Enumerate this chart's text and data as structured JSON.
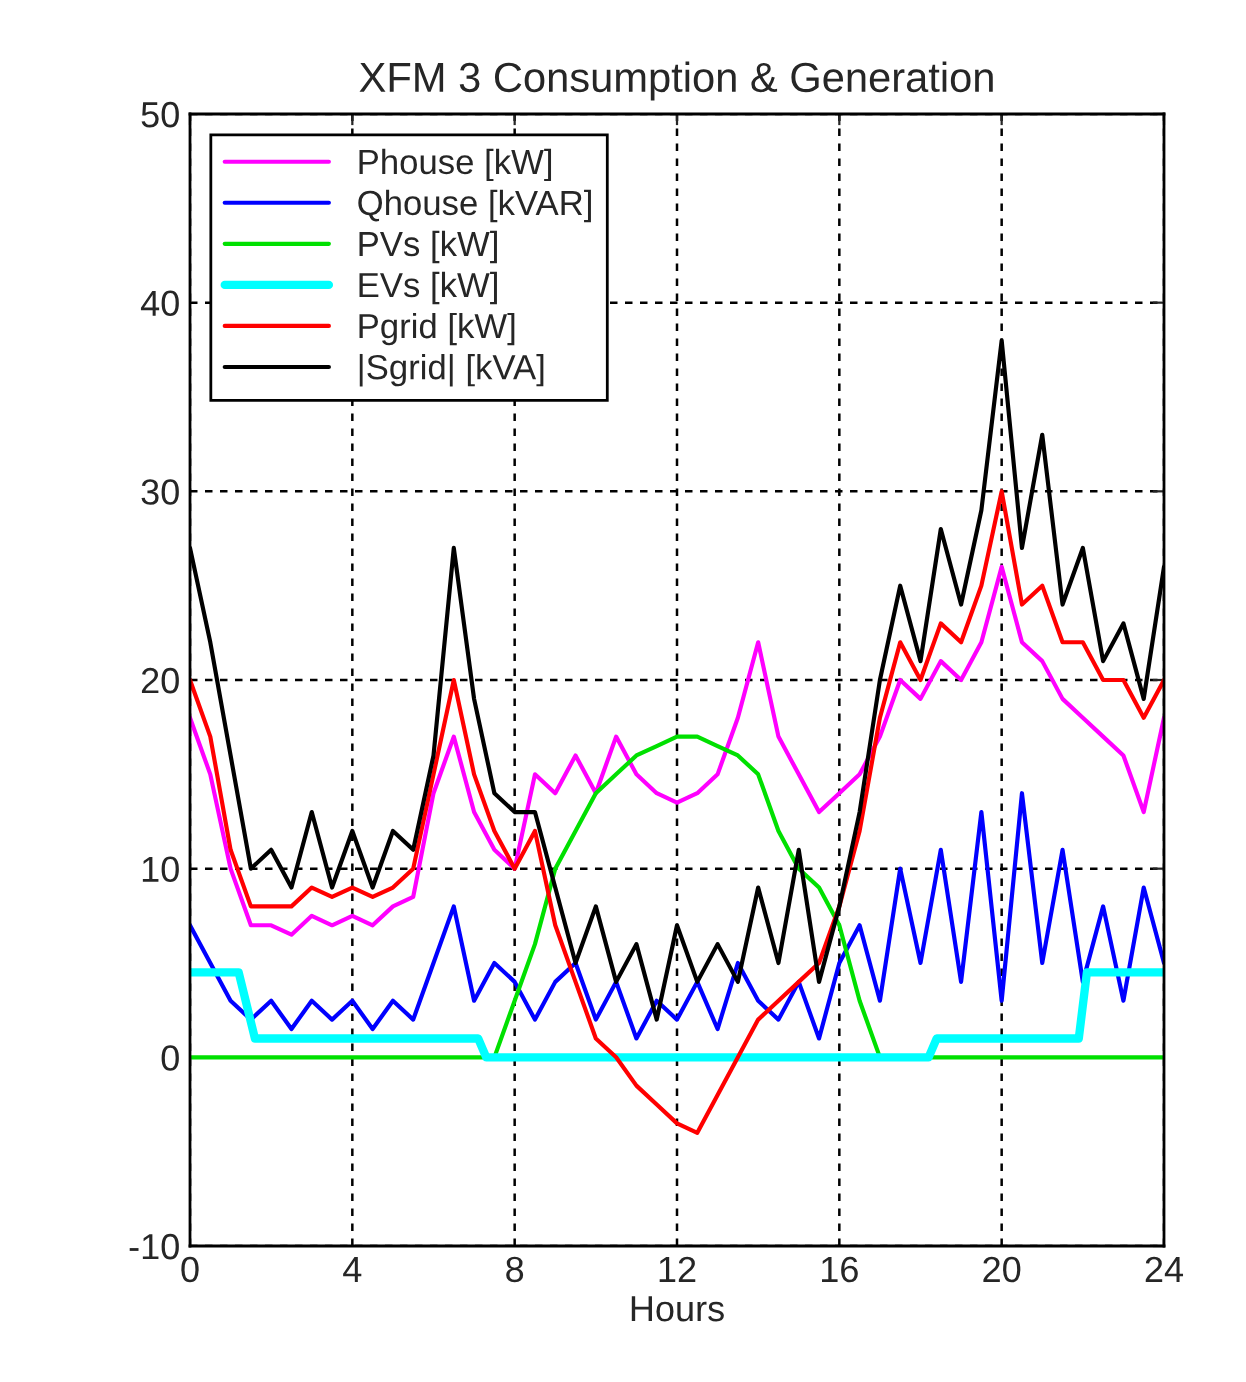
{
  "chart_data": {
    "type": "line",
    "title": "XFM 3 Consumption & Generation",
    "xlabel": "Hours",
    "x": [
      0,
      0.5,
      1,
      1.5,
      2,
      2.5,
      3,
      3.5,
      4,
      4.5,
      5,
      5.5,
      6,
      6.5,
      7,
      7.5,
      8,
      8.5,
      9,
      9.5,
      10,
      10.5,
      11,
      11.5,
      12,
      12.5,
      13,
      13.5,
      14,
      14.5,
      15,
      15.5,
      16,
      16.5,
      17,
      17.5,
      18,
      18.5,
      19,
      19.5,
      20,
      20.5,
      21,
      21.5,
      22,
      22.5,
      23,
      23.5,
      24
    ],
    "series": [
      {
        "name": "Phouse [kW]",
        "color": "#ff00ff",
        "values": [
          18,
          15,
          10,
          7,
          7,
          6.5,
          7.5,
          7,
          7.5,
          7,
          8,
          8.5,
          14,
          17,
          13,
          11,
          10,
          15,
          14,
          16,
          14,
          17,
          15,
          14,
          13.5,
          14,
          15,
          18,
          22,
          17,
          15,
          13,
          14,
          15,
          17,
          20,
          19,
          21,
          20,
          22,
          26,
          22,
          21,
          19,
          18,
          17,
          16,
          13,
          18
        ]
      },
      {
        "name": "Qhouse [kVAR]",
        "color": "#0000ff",
        "values": [
          7,
          5,
          3,
          2,
          3,
          1.5,
          3,
          2,
          3,
          1.5,
          3,
          2,
          5,
          8,
          3,
          5,
          4,
          2,
          4,
          5,
          2,
          4,
          1,
          3,
          2,
          4,
          1.5,
          5,
          3,
          2,
          4,
          1,
          5,
          7,
          3,
          10,
          5,
          11,
          4,
          13,
          3,
          14,
          5,
          11,
          4,
          8,
          3,
          9,
          5
        ]
      },
      {
        "name": "PVs [kW]",
        "color": "#00e000",
        "x": [
          0,
          7.5,
          8,
          8.5,
          9,
          9.5,
          10,
          10.5,
          11,
          11.5,
          12,
          12.5,
          13,
          13.5,
          14,
          14.5,
          15,
          15.5,
          16,
          16.5,
          17,
          24
        ],
        "values": [
          0,
          0,
          3,
          6,
          10,
          12,
          14,
          15,
          16,
          16.5,
          17,
          17,
          16.5,
          16,
          15,
          12,
          10,
          9,
          7,
          3,
          0,
          0
        ]
      },
      {
        "name": "EVs [kW]",
        "color": "#00ffff",
        "x": [
          0,
          1.2,
          1.6,
          7.1,
          7.3,
          18.2,
          18.4,
          21.9,
          22.1,
          24
        ],
        "values": [
          4.5,
          4.5,
          1,
          1,
          0,
          0,
          1,
          1,
          4.5,
          4.5
        ]
      },
      {
        "name": "Pgrid [kW]",
        "color": "#ff0000",
        "values": [
          20,
          17,
          11,
          8,
          8,
          8,
          9,
          8.5,
          9,
          8.5,
          9,
          10,
          15,
          20,
          15,
          12,
          10,
          12,
          7,
          4,
          1,
          0,
          -1.5,
          -2.5,
          -3.5,
          -4,
          -2,
          0,
          2,
          3,
          4,
          5,
          8,
          12,
          18,
          22,
          20,
          23,
          22,
          25,
          30,
          24,
          25,
          22,
          22,
          20,
          20,
          18,
          20
        ]
      },
      {
        "name": "|Sgrid| [kVA]",
        "color": "#000000",
        "values": [
          27,
          22,
          16,
          10,
          11,
          9,
          13,
          9,
          12,
          9,
          12,
          11,
          16,
          27,
          19,
          14,
          13,
          13,
          9,
          5,
          8,
          4,
          6,
          2,
          7,
          4,
          6,
          4,
          9,
          5,
          11,
          4,
          8,
          13,
          20,
          25,
          21,
          28,
          24,
          29,
          38,
          27,
          33,
          24,
          27,
          21,
          23,
          19,
          26
        ]
      }
    ],
    "xlim": [
      0,
      24
    ],
    "xticks": [
      0,
      4,
      8,
      12,
      16,
      20,
      24
    ],
    "ylim": [
      -10,
      50
    ],
    "yticks": [
      -10,
      0,
      10,
      20,
      30,
      40,
      50
    ],
    "grid": true,
    "legend": "top left",
    "line_style": "solid",
    "marker": "none"
  }
}
